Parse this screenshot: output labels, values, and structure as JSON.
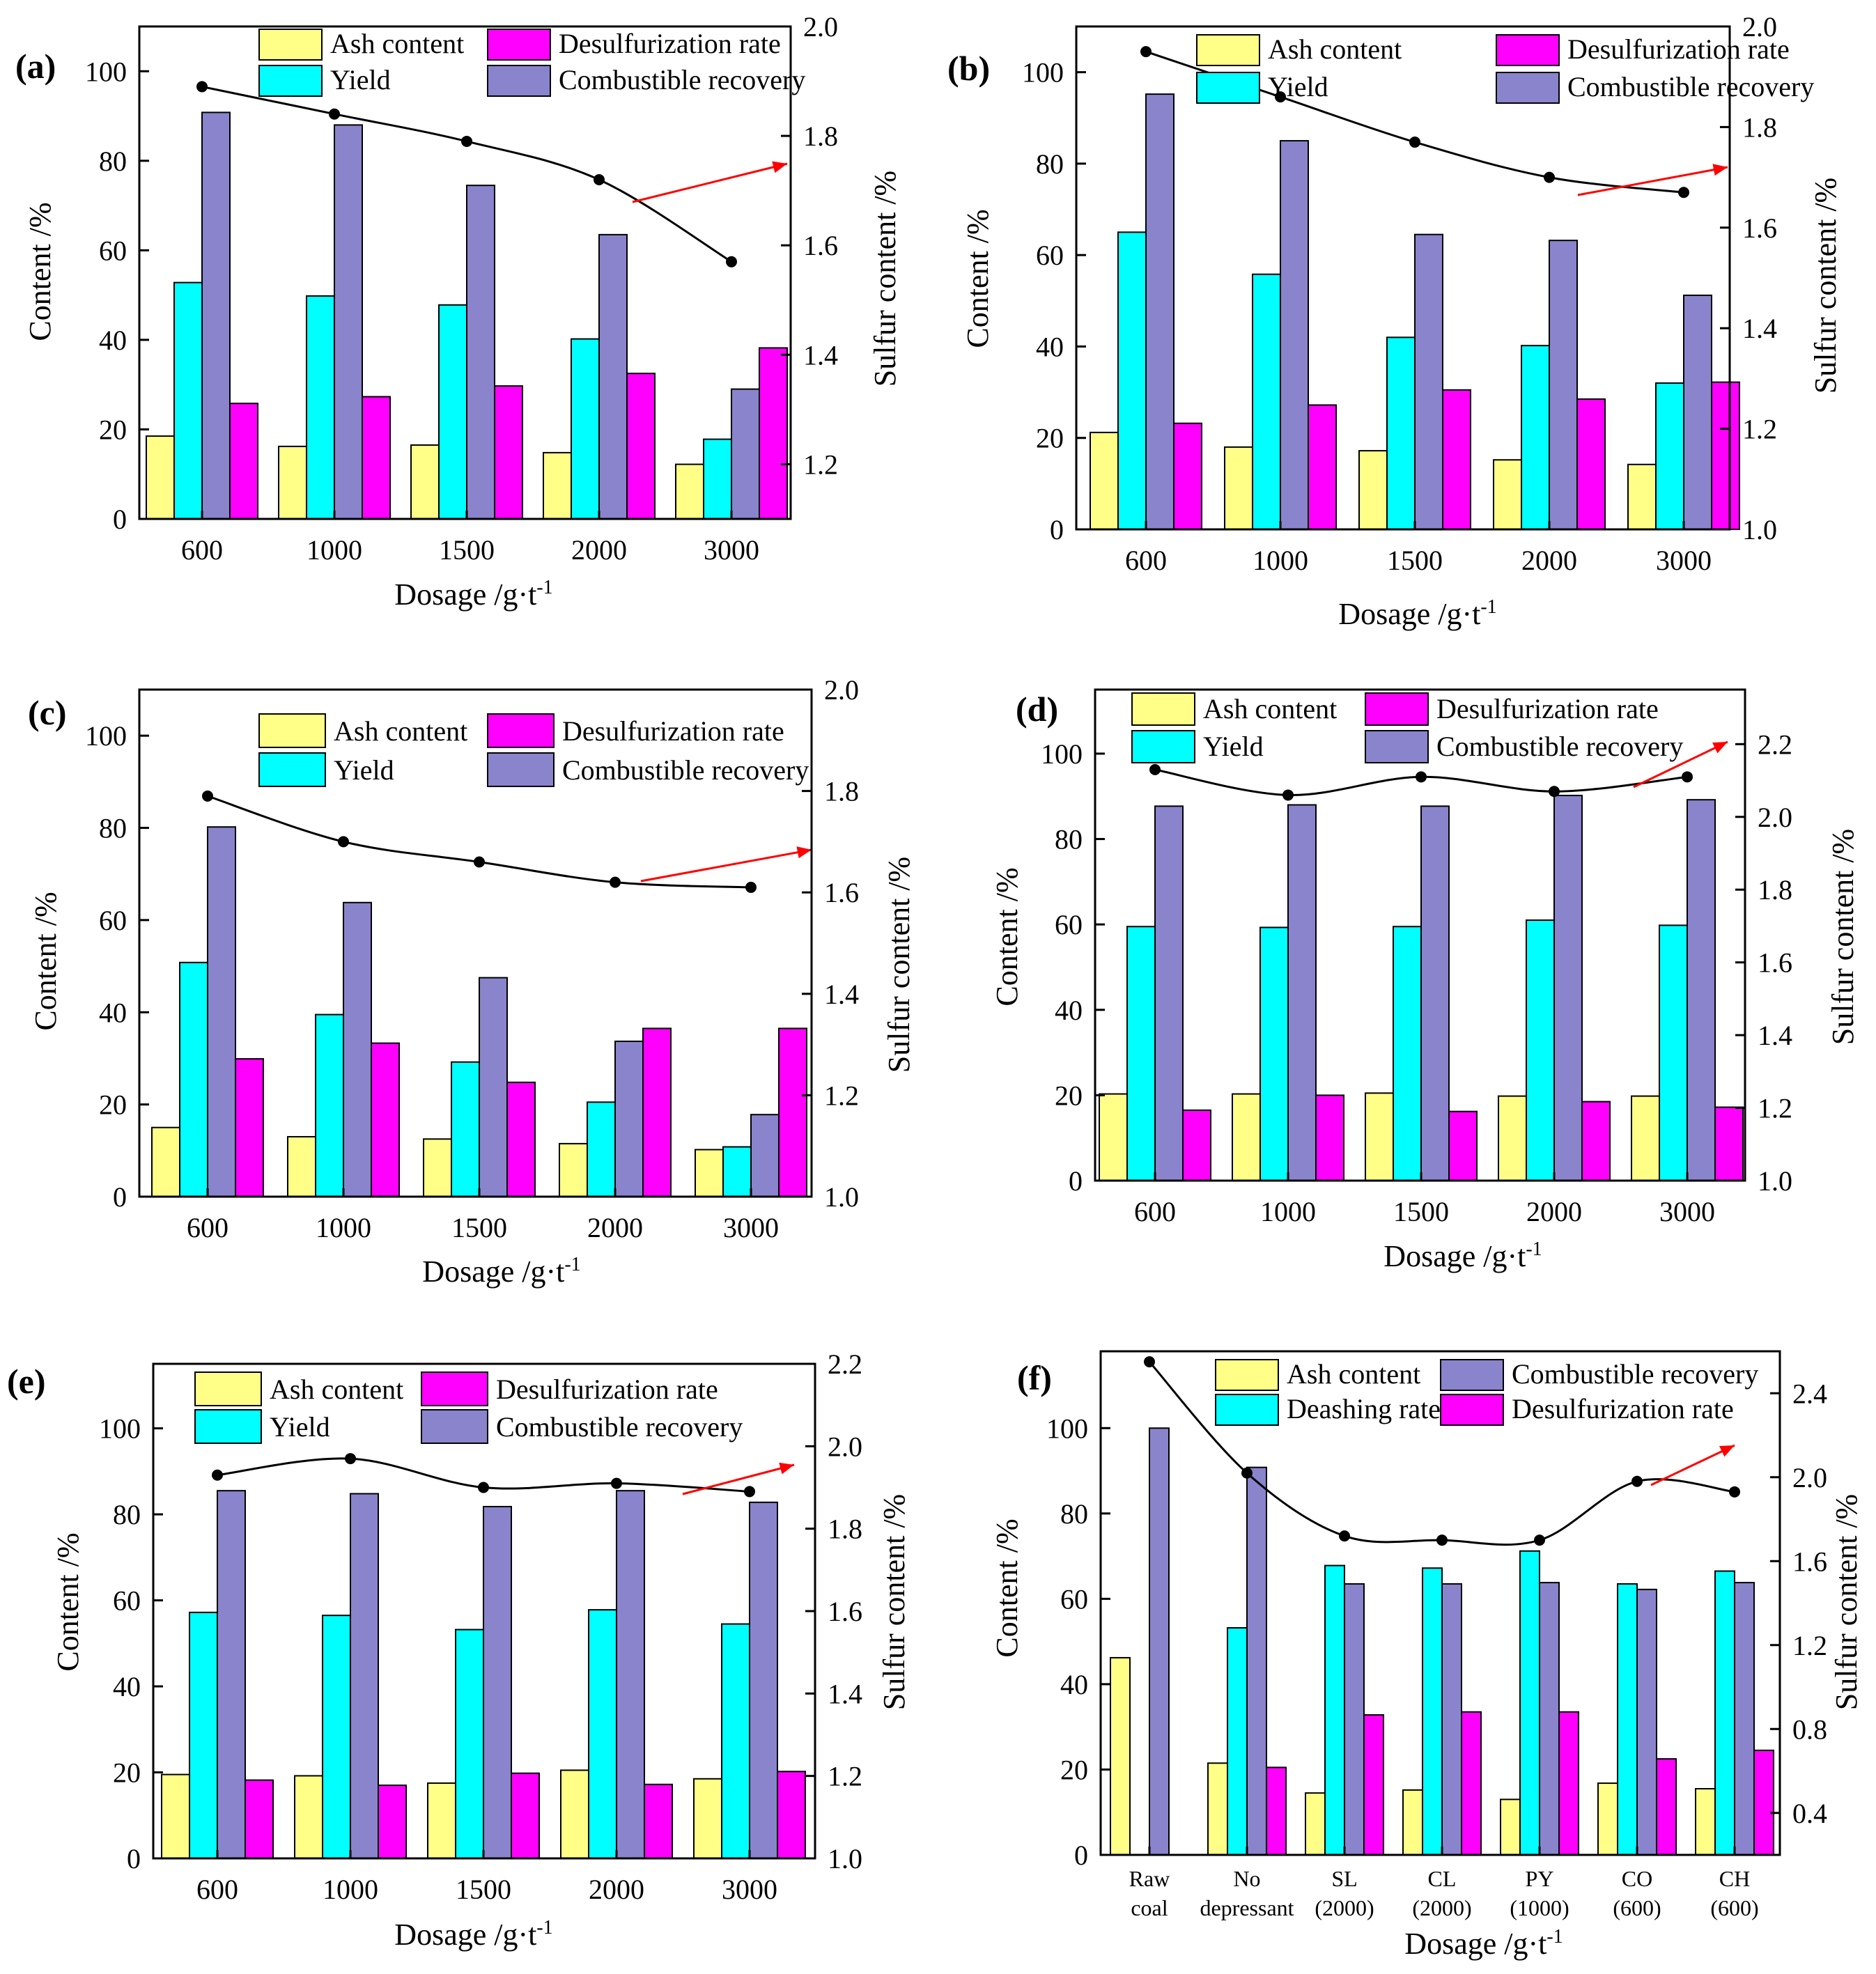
{
  "colors": {
    "ash": "#ffff88",
    "yield": "#00ffff",
    "combustible": "#8a84cc",
    "desulf": "#ff00ff",
    "curve": "#000000",
    "arrow": "#ff0000"
  },
  "chart_data": [
    {
      "id": "a",
      "panel_label": "(a)",
      "type": "bar",
      "xlabel": "Dosage /g·t",
      "xlabel_sup": "-1",
      "ylabel": "Content /%",
      "y2label": "Sulfur content /%",
      "categories": [
        "600",
        "1000",
        "1500",
        "2000",
        "3000"
      ],
      "ylim": [
        0,
        110
      ],
      "yticks": [
        "0",
        "20",
        "40",
        "60",
        "80",
        "100"
      ],
      "y2lim": [
        1.1,
        2.0
      ],
      "y2ticks": [
        "1.2",
        "1.4",
        "1.6",
        "1.8",
        "2.0"
      ],
      "legend": [
        "Ash content",
        "Desulfurization rate",
        "Yield",
        "Combustible recovery"
      ],
      "series": [
        {
          "name": "Ash content",
          "values": [
            18.5,
            16.2,
            16.5,
            14.8,
            12.2
          ]
        },
        {
          "name": "Yield",
          "values": [
            52.8,
            49.8,
            47.8,
            40.2,
            17.8
          ]
        },
        {
          "name": "Combustible recovery",
          "values": [
            90.8,
            88.0,
            74.5,
            63.5,
            29.0
          ]
        },
        {
          "name": "Desulfurization rate",
          "values": [
            25.8,
            27.3,
            29.7,
            32.5,
            38.2
          ]
        }
      ],
      "sulfur": [
        1.89,
        1.84,
        1.79,
        1.72,
        1.57
      ]
    },
    {
      "id": "b",
      "panel_label": "(b)",
      "type": "bar",
      "xlabel": "Dosage /g·t",
      "xlabel_sup": "-1",
      "ylabel": "Content /%",
      "y2label": "Sulfur content /%",
      "categories": [
        "600",
        "1000",
        "1500",
        "2000",
        "3000"
      ],
      "ylim": [
        0,
        110
      ],
      "yticks": [
        "0",
        "20",
        "40",
        "60",
        "80",
        "100"
      ],
      "y2lim": [
        1.0,
        2.0
      ],
      "y2ticks": [
        "1.0",
        "1.2",
        "1.4",
        "1.6",
        "1.8",
        "2.0"
      ],
      "legend": [
        "Ash content",
        "Desulfurization rate",
        "Yield",
        "Combustible recovery"
      ],
      "series": [
        {
          "name": "Ash content",
          "values": [
            21.2,
            18.0,
            17.2,
            15.2,
            14.2
          ]
        },
        {
          "name": "Yield",
          "values": [
            65.0,
            55.8,
            42.0,
            40.2,
            32.0
          ]
        },
        {
          "name": "Combustible recovery",
          "values": [
            95.2,
            85.0,
            64.5,
            63.2,
            51.2
          ]
        },
        {
          "name": "Desulfurization rate",
          "values": [
            23.2,
            27.2,
            30.5,
            28.5,
            32.2
          ]
        }
      ],
      "sulfur": [
        1.95,
        1.86,
        1.77,
        1.7,
        1.67
      ]
    },
    {
      "id": "c",
      "panel_label": "(c)",
      "type": "bar",
      "xlabel": "Dosage /g·t",
      "xlabel_sup": "-1",
      "ylabel": "Content /%",
      "y2label": "Sulfur content /%",
      "categories": [
        "600",
        "1000",
        "1500",
        "2000",
        "3000"
      ],
      "ylim": [
        0,
        110
      ],
      "yticks": [
        "0",
        "20",
        "40",
        "60",
        "80",
        "100"
      ],
      "y2lim": [
        1.0,
        2.0
      ],
      "y2ticks": [
        "1.0",
        "1.2",
        "1.4",
        "1.6",
        "1.8",
        "2.0"
      ],
      "legend": [
        "Ash content",
        "Desulfurization rate",
        "Yield",
        "Combustible recovery"
      ],
      "series": [
        {
          "name": "Ash content",
          "values": [
            15.0,
            13.0,
            12.5,
            11.5,
            10.2
          ]
        },
        {
          "name": "Yield",
          "values": [
            50.8,
            39.5,
            29.2,
            20.5,
            10.8
          ]
        },
        {
          "name": "Combustible recovery",
          "values": [
            80.2,
            63.8,
            47.5,
            33.7,
            17.8
          ]
        },
        {
          "name": "Desulfurization rate",
          "values": [
            29.9,
            33.3,
            24.8,
            36.5,
            36.5
          ]
        }
      ],
      "sulfur": [
        1.79,
        1.7,
        1.66,
        1.62,
        1.61
      ]
    },
    {
      "id": "d",
      "panel_label": "(d)",
      "type": "bar",
      "xlabel": "Dosage /g·t",
      "xlabel_sup": "-1",
      "ylabel": "Content /%",
      "y2label": "Sulfur content /%",
      "categories": [
        "600",
        "1000",
        "1500",
        "2000",
        "3000"
      ],
      "ylim": [
        0,
        115
      ],
      "yticks": [
        "0",
        "20",
        "40",
        "60",
        "80",
        "100"
      ],
      "y2lim": [
        1.0,
        2.35
      ],
      "y2ticks": [
        "1.0",
        "1.2",
        "1.4",
        "1.6",
        "1.8",
        "2.0",
        "2.2"
      ],
      "legend": [
        "Ash content",
        "Desulfurization rate",
        "Yield",
        "Combustible recovery"
      ],
      "series": [
        {
          "name": "Ash content",
          "values": [
            20.3,
            20.3,
            20.5,
            19.8,
            19.8
          ]
        },
        {
          "name": "Yield",
          "values": [
            59.5,
            59.3,
            59.5,
            61.0,
            59.8
          ]
        },
        {
          "name": "Combustible recovery",
          "values": [
            87.7,
            88.0,
            87.7,
            90.2,
            89.2
          ]
        },
        {
          "name": "Desulfurization rate",
          "values": [
            16.5,
            20.0,
            16.2,
            18.5,
            17.2
          ]
        }
      ],
      "sulfur": [
        2.13,
        2.06,
        2.11,
        2.07,
        2.11
      ]
    },
    {
      "id": "e",
      "panel_label": "(e)",
      "type": "bar",
      "xlabel": "Dosage /g·t",
      "xlabel_sup": "-1",
      "ylabel": "Content /%",
      "y2label": "Sulfur content /%",
      "categories": [
        "600",
        "1000",
        "1500",
        "2000",
        "3000"
      ],
      "ylim": [
        0,
        115
      ],
      "yticks": [
        "0",
        "20",
        "40",
        "60",
        "80",
        "100"
      ],
      "y2lim": [
        1.0,
        2.2
      ],
      "y2ticks": [
        "1.0",
        "1.2",
        "1.4",
        "1.6",
        "1.8",
        "2.0",
        "2.2"
      ],
      "legend": [
        "Ash content",
        "Desulfurization rate",
        "Yield",
        "Combustible recovery"
      ],
      "series": [
        {
          "name": "Ash content",
          "values": [
            19.5,
            19.2,
            17.5,
            20.5,
            18.5
          ]
        },
        {
          "name": "Yield",
          "values": [
            57.2,
            56.5,
            53.2,
            57.8,
            54.5
          ]
        },
        {
          "name": "Combustible recovery",
          "values": [
            85.5,
            84.8,
            81.8,
            85.5,
            82.8
          ]
        },
        {
          "name": "Desulfurization rate",
          "values": [
            18.2,
            17.0,
            19.8,
            17.2,
            20.2
          ]
        }
      ],
      "sulfur": [
        1.93,
        1.97,
        1.9,
        1.91,
        1.89
      ]
    },
    {
      "id": "f",
      "panel_label": "(f)",
      "type": "bar",
      "xlabel": "Dosage /g·t",
      "xlabel_sup": "-1",
      "ylabel": "Content /%",
      "y2label": "Sulfur content /%",
      "categories": [
        [
          "Raw",
          "coal"
        ],
        [
          "No",
          "depressant"
        ],
        [
          "SL",
          "(2000)"
        ],
        [
          "CL",
          "(2000)"
        ],
        [
          "PY",
          "(1000)"
        ],
        [
          "CO",
          "(600)"
        ],
        [
          "CH",
          "(600)"
        ]
      ],
      "ylim": [
        0,
        118
      ],
      "yticks": [
        "0",
        "20",
        "40",
        "60",
        "80",
        "100"
      ],
      "y2lim": [
        0.2,
        2.6
      ],
      "y2ticks": [
        "0.4",
        "0.8",
        "1.2",
        "1.6",
        "2.0",
        "2.4"
      ],
      "legend": [
        "Ash content",
        "Combustible recovery",
        "Deashing rate",
        "Desulfurization rate"
      ],
      "series": [
        {
          "name": "Ash content",
          "values": [
            46.2,
            21.5,
            14.5,
            15.2,
            13.0,
            16.8,
            15.5
          ]
        },
        {
          "name": "Deashing rate",
          "values": [
            null,
            53.2,
            67.8,
            67.2,
            71.2,
            63.5,
            66.5
          ]
        },
        {
          "name": "Combustible recovery",
          "values": [
            100.0,
            90.8,
            63.5,
            63.5,
            63.8,
            62.2,
            63.8
          ]
        },
        {
          "name": "Desulfurization rate",
          "values": [
            null,
            20.5,
            32.8,
            33.5,
            33.5,
            22.5,
            24.5
          ]
        }
      ],
      "sulfur": [
        2.55,
        2.02,
        1.72,
        1.7,
        1.7,
        1.98,
        1.93
      ]
    }
  ]
}
